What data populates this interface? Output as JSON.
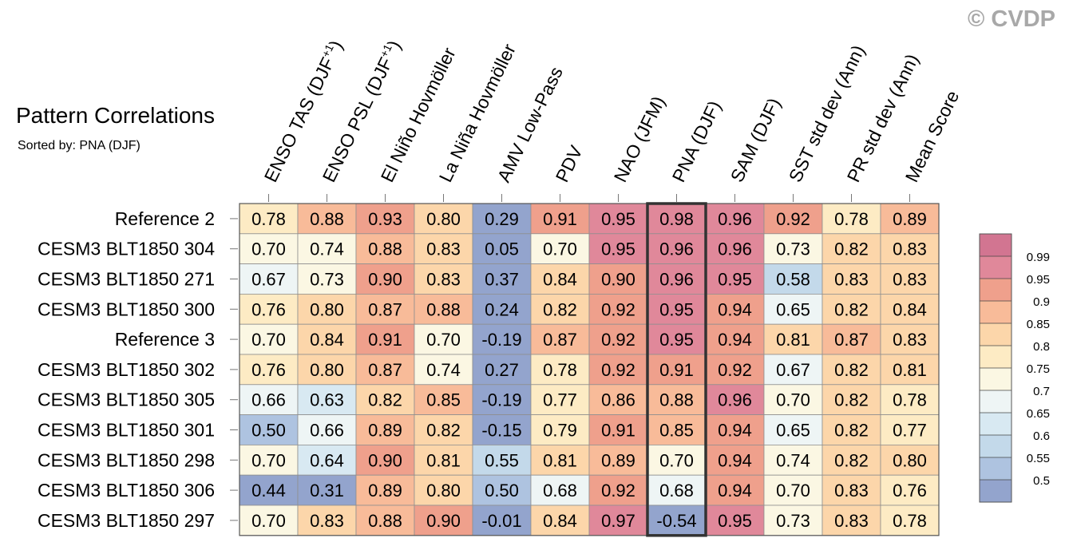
{
  "title": "Pattern Correlations",
  "subtitle": "Sorted by: PNA (DJF)",
  "watermark": "© CVDP",
  "chart_data": {
    "type": "heatmap",
    "title": "Pattern Correlations",
    "subtitle": "Sorted by: PNA (DJF)",
    "columns": [
      "ENSO TAS (DJF+1)",
      "ENSO PSL (DJF+1)",
      "El Niño Hovmöller",
      "La Niña Hovmöller",
      "AMV Low-Pass",
      "PDV",
      "NAO (JFM)",
      "PNA (DJF)",
      "SAM (DJF)",
      "SST std dev (Ann)",
      "PR std dev (Ann)",
      "Mean Score"
    ],
    "rows": [
      "Reference 2",
      "CESM3 BLT1850 304",
      "CESM3 BLT1850 271",
      "CESM3 BLT1850 300",
      "Reference 3",
      "CESM3 BLT1850 302",
      "CESM3 BLT1850 305",
      "CESM3 BLT1850 301",
      "CESM3 BLT1850 298",
      "CESM3 BLT1850 306",
      "CESM3 BLT1850 297"
    ],
    "values": [
      [
        "0.78",
        "0.88",
        "0.93",
        "0.80",
        "0.29",
        "0.91",
        "0.95",
        "0.98",
        "0.96",
        "0.92",
        "0.78",
        "0.89"
      ],
      [
        "0.70",
        "0.74",
        "0.88",
        "0.83",
        "0.05",
        "0.70",
        "0.95",
        "0.96",
        "0.96",
        "0.73",
        "0.82",
        "0.83"
      ],
      [
        "0.67",
        "0.73",
        "0.90",
        "0.83",
        "0.37",
        "0.84",
        "0.90",
        "0.96",
        "0.95",
        "0.58",
        "0.83",
        "0.83"
      ],
      [
        "0.76",
        "0.80",
        "0.87",
        "0.88",
        "0.24",
        "0.82",
        "0.92",
        "0.95",
        "0.94",
        "0.65",
        "0.82",
        "0.84"
      ],
      [
        "0.70",
        "0.84",
        "0.91",
        "0.70",
        "-0.19",
        "0.87",
        "0.92",
        "0.95",
        "0.94",
        "0.81",
        "0.87",
        "0.83"
      ],
      [
        "0.76",
        "0.80",
        "0.87",
        "0.74",
        "0.27",
        "0.78",
        "0.92",
        "0.91",
        "0.92",
        "0.67",
        "0.82",
        "0.81"
      ],
      [
        "0.66",
        "0.63",
        "0.82",
        "0.85",
        "-0.19",
        "0.77",
        "0.86",
        "0.88",
        "0.96",
        "0.70",
        "0.82",
        "0.78"
      ],
      [
        "0.50",
        "0.66",
        "0.89",
        "0.82",
        "-0.15",
        "0.79",
        "0.91",
        "0.85",
        "0.94",
        "0.65",
        "0.82",
        "0.77"
      ],
      [
        "0.70",
        "0.64",
        "0.90",
        "0.81",
        "0.55",
        "0.81",
        "0.89",
        "0.70",
        "0.94",
        "0.74",
        "0.82",
        "0.80"
      ],
      [
        "0.44",
        "0.31",
        "0.89",
        "0.80",
        "0.50",
        "0.68",
        "0.92",
        "0.68",
        "0.94",
        "0.70",
        "0.83",
        "0.76"
      ],
      [
        "0.70",
        "0.83",
        "0.88",
        "0.90",
        "-0.01",
        "0.84",
        "0.97",
        "-0.54",
        "0.95",
        "0.73",
        "0.83",
        "0.78"
      ]
    ],
    "highlighted_column": "PNA (DJF)",
    "colorbar": {
      "labels": [
        "0.99",
        "0.95",
        "0.9",
        "0.85",
        "0.8",
        "0.75",
        "0.7",
        "0.65",
        "0.6",
        "0.55",
        "0.5"
      ],
      "bins": [
        0.5,
        0.55,
        0.6,
        0.65,
        0.7,
        0.75,
        0.8,
        0.85,
        0.9,
        0.95,
        0.99
      ],
      "colors": [
        "#93a4cd",
        "#aec3e0",
        "#c3d9ea",
        "#d8e9f2",
        "#eef5f5",
        "#fbf7e3",
        "#fdebc4",
        "#fcd6aa",
        "#f8bb99",
        "#efa08c",
        "#e0889a",
        "#d27591"
      ]
    }
  }
}
